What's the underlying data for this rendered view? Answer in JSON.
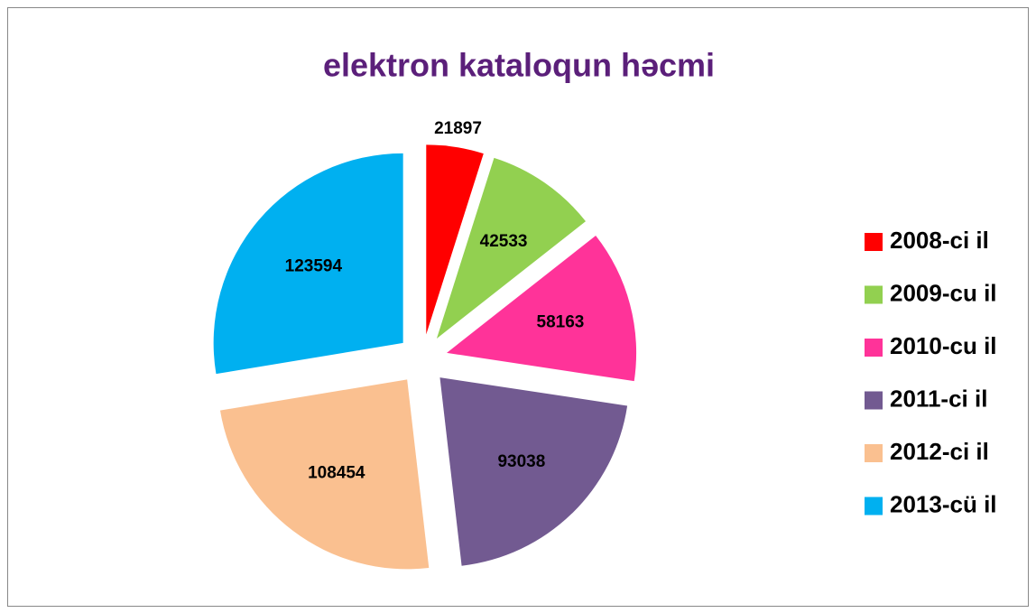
{
  "chart_data": {
    "type": "pie",
    "title": "elektron kataloqun həcmi",
    "categories": [
      "2008-ci il",
      "2009-cu il",
      "2010-cu il",
      "2011-ci il",
      "2012-ci il",
      "2013-cü il"
    ],
    "values": [
      21897,
      42533,
      58163,
      93038,
      108454,
      123594
    ],
    "colors": [
      "#ff0000",
      "#92d050",
      "#ff3399",
      "#725a91",
      "#fac090",
      "#00b0f0"
    ],
    "legend": "right"
  }
}
